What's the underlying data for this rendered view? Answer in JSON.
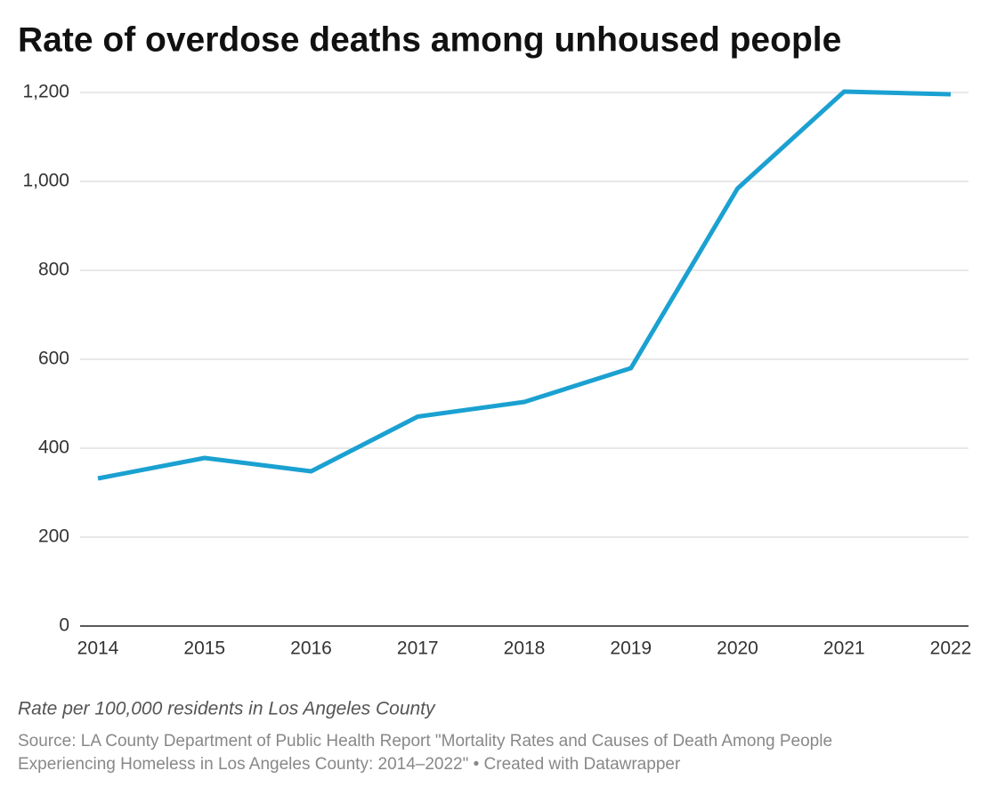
{
  "chart_data": {
    "type": "line",
    "title": "Rate of overdose deaths among unhoused people",
    "note": "Rate per 100,000 residents in Los Angeles County",
    "source": [
      "Source: LA County Department of Public Health Report \"Mortality Rates and Causes of Death Among People",
      "Experiencing Homeless in Los Angeles County: 2014–2022\" • Created with Datawrapper"
    ],
    "categories": [
      "2014",
      "2015",
      "2016",
      "2017",
      "2018",
      "2019",
      "2020",
      "2021",
      "2022"
    ],
    "values": [
      332,
      378,
      348,
      471,
      504,
      580,
      984,
      1202,
      1196
    ],
    "color": "#1ba1d1",
    "ylim": [
      0,
      1200
    ],
    "yticks": [
      0,
      200,
      400,
      600,
      800,
      {
        "value": 1000,
        "label": "1,000"
      },
      {
        "value": 1200,
        "label": "1,200"
      }
    ],
    "grid": true
  }
}
